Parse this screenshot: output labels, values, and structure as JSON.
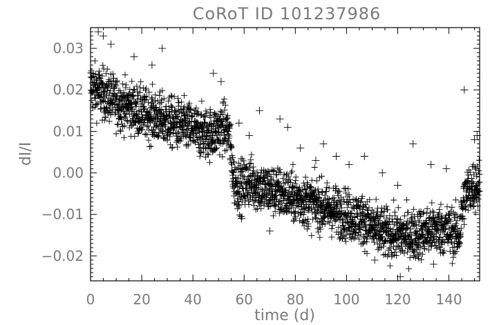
{
  "chart_data": {
    "type": "scatter",
    "title": "CoRoT ID 101237986",
    "xlabel": "time (d)",
    "ylabel": "dI/I",
    "xlim": [
      0,
      152
    ],
    "ylim": [
      -0.026,
      0.035
    ],
    "x_ticks": [
      "0",
      "20",
      "40",
      "60",
      "80",
      "100",
      "120",
      "140"
    ],
    "y_ticks": [
      "0.03",
      "0.02",
      "0.01",
      "0.00",
      "−0.01",
      "−0.02"
    ],
    "marker": "plus",
    "color": "#000000",
    "grid": false,
    "series": [
      {
        "x": [
          0,
          2,
          5,
          8,
          10,
          12,
          15,
          18,
          20,
          22,
          25,
          28,
          30,
          32,
          35,
          38,
          40,
          42,
          45,
          48,
          50,
          52,
          54,
          55,
          56,
          58,
          60,
          62,
          65,
          68,
          70,
          72,
          75,
          78,
          80,
          82,
          85,
          88,
          90,
          92,
          95,
          98,
          100,
          102,
          105,
          108,
          110,
          112,
          115,
          118,
          120,
          122,
          125,
          128,
          130,
          132,
          135,
          138,
          140,
          142,
          144,
          145,
          146,
          147,
          148,
          150,
          152
        ],
        "y": [
          0.021,
          0.02,
          0.019,
          0.018,
          0.017,
          0.0165,
          0.016,
          0.015,
          0.0145,
          0.014,
          0.0135,
          0.013,
          0.0125,
          0.012,
          0.0115,
          0.011,
          0.0105,
          0.01,
          0.0095,
          0.0095,
          0.0105,
          0.011,
          0.01,
          0.004,
          -0.002,
          -0.003,
          -0.003,
          -0.002,
          -0.003,
          -0.004,
          -0.004,
          -0.0045,
          -0.005,
          -0.0055,
          -0.006,
          -0.0065,
          -0.007,
          -0.0075,
          -0.008,
          -0.0085,
          -0.009,
          -0.0095,
          -0.01,
          -0.0105,
          -0.011,
          -0.012,
          -0.013,
          -0.014,
          -0.0145,
          -0.015,
          -0.015,
          -0.015,
          -0.015,
          -0.0145,
          -0.0145,
          -0.014,
          -0.0135,
          -0.0135,
          -0.014,
          -0.0145,
          -0.015,
          -0.01,
          -0.006,
          -0.005,
          -0.004,
          -0.003,
          -0.003
        ]
      }
    ],
    "outliers": [
      {
        "x": 3,
        "y": 0.034
      },
      {
        "x": 5,
        "y": 0.033
      },
      {
        "x": 8,
        "y": 0.031
      },
      {
        "x": 17,
        "y": 0.028
      },
      {
        "x": 28,
        "y": 0.03
      },
      {
        "x": 24,
        "y": 0.026
      },
      {
        "x": 48,
        "y": 0.024
      },
      {
        "x": 51,
        "y": 0.022
      },
      {
        "x": 58,
        "y": 0.012
      },
      {
        "x": 62,
        "y": 0.009
      },
      {
        "x": 66,
        "y": 0.015
      },
      {
        "x": 74,
        "y": 0.013
      },
      {
        "x": 77,
        "y": 0.011
      },
      {
        "x": 82,
        "y": 0.006
      },
      {
        "x": 88,
        "y": 0.003
      },
      {
        "x": 91,
        "y": 0.007
      },
      {
        "x": 96,
        "y": 0.004
      },
      {
        "x": 101,
        "y": 0.002
      },
      {
        "x": 107,
        "y": 0.004
      },
      {
        "x": 114,
        "y": 0.0
      },
      {
        "x": 120,
        "y": -0.003
      },
      {
        "x": 126,
        "y": 0.007
      },
      {
        "x": 133,
        "y": 0.002
      },
      {
        "x": 139,
        "y": 0.001
      },
      {
        "x": 146,
        "y": 0.02
      },
      {
        "x": 150,
        "y": 0.008
      },
      {
        "x": 151,
        "y": 0.009
      },
      {
        "x": 121,
        "y": -0.025
      },
      {
        "x": 111,
        "y": -0.021
      },
      {
        "x": 134,
        "y": -0.022
      },
      {
        "x": 128,
        "y": -0.02
      },
      {
        "x": 59,
        "y": -0.011
      },
      {
        "x": 70,
        "y": -0.014
      }
    ]
  }
}
